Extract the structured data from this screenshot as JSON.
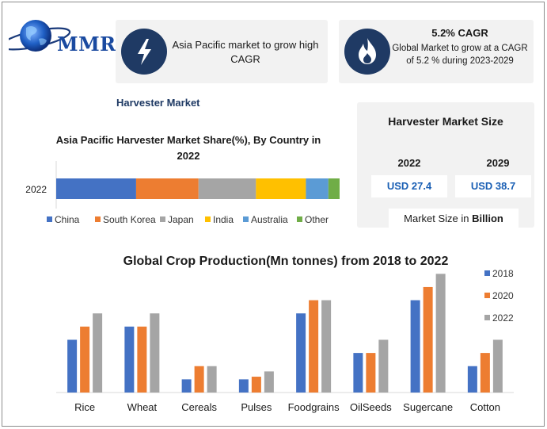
{
  "logo": {
    "text": "MMR"
  },
  "cards": {
    "asia_icon": "lightning-icon",
    "asia_text": "Asia Pacific market to grow high CAGR",
    "cagr_icon": "flame-icon",
    "cagr_title": "5.2% CAGR",
    "cagr_text": "Global Market to grow at a CAGR of 5.2 % during 2023-2029"
  },
  "market_name": "Harvester Market",
  "market_size": {
    "title": "Harvester Market Size",
    "year_a": "2022",
    "year_b": "2029",
    "value_a": "USD 27.4",
    "value_b": "USD 38.7",
    "unit_prefix": "Market Size in ",
    "unit_bold": "Billion"
  },
  "colors": {
    "blue": "#4472c4",
    "orange": "#ed7d31",
    "gray": "#a5a5a5",
    "yellow": "#ffc000",
    "lightblue": "#5b9bd5",
    "green": "#70ad47",
    "navy": "#1f3a64"
  },
  "chart_data": [
    {
      "type": "bar",
      "orientation": "horizontal-stacked",
      "title": "Asia Pacific Harvester Market Share(%), By Country in 2022",
      "categories": [
        "2022"
      ],
      "series": [
        {
          "name": "China",
          "values": [
            32
          ],
          "color": "#4472c4"
        },
        {
          "name": "South Korea",
          "values": [
            25
          ],
          "color": "#ed7d31"
        },
        {
          "name": "Japan",
          "values": [
            23
          ],
          "color": "#a5a5a5"
        },
        {
          "name": "India",
          "values": [
            20
          ],
          "color": "#ffc000"
        },
        {
          "name": "Australia",
          "values": [
            9
          ],
          "color": "#5b9bd5"
        },
        {
          "name": "Other",
          "values": [
            4.5
          ],
          "color": "#70ad47"
        }
      ],
      "legend": "bottom"
    },
    {
      "type": "bar",
      "title": "Global Crop Production(Mn tonnes) from 2018 to 2022",
      "categories": [
        "Rice",
        "Wheat",
        "Cereals",
        "Pulses",
        "Foodgrains",
        "OilSeeds",
        "Sugercane",
        "Cotton"
      ],
      "series": [
        {
          "name": "2018",
          "values": [
            40,
            50,
            10,
            10,
            60,
            30,
            70,
            20
          ],
          "color": "#4472c4"
        },
        {
          "name": "2020",
          "values": [
            50,
            50,
            20,
            12,
            70,
            30,
            80,
            30
          ],
          "color": "#ed7d31"
        },
        {
          "name": "2022",
          "values": [
            60,
            60,
            20,
            16,
            70,
            40,
            90,
            40
          ],
          "color": "#a5a5a5"
        }
      ],
      "ylim": [
        0,
        95
      ],
      "legend": "right"
    }
  ]
}
